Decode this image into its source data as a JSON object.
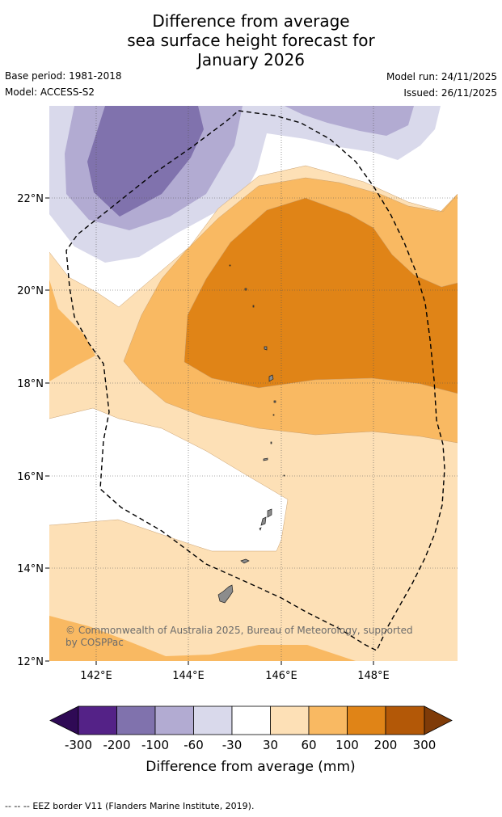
{
  "title": {
    "line1": "Difference from average",
    "line2": "sea surface height forecast for",
    "line3": "January 2026"
  },
  "meta": {
    "base_period": "Base period: 1981-2018",
    "model": "Model: ACCESS-S2",
    "model_run": "Model run: 24/11/2025",
    "issued": "Issued: 26/11/2025"
  },
  "map": {
    "lat_labels": [
      "22°N",
      "20°N",
      "18°N",
      "16°N",
      "14°N",
      "12°N"
    ],
    "lon_labels": [
      "142°E",
      "144°E",
      "146°E",
      "148°E"
    ],
    "copyright_line1": "© Commonwealth of Australia 2025, Bureau of Meteorology, supported",
    "copyright_line2": "by COSPPac",
    "colors": {
      "neg_lt300": "#2f0a55",
      "neg_300_200": "#542287",
      "neg_200_100": "#8072ad",
      "neg_100_60": "#b2abd2",
      "neg_60_30": "#d9d9eb",
      "neutral": "#ffffff",
      "pos_30_60": "#fde0b6",
      "pos_60_100": "#f9b962",
      "pos_100_200": "#e08417",
      "pos_200_300": "#b35807",
      "pos_gt300": "#7f3b08",
      "land": "#8c8c8c"
    }
  },
  "colorbar": {
    "tick_labels": [
      "-300",
      "-200",
      "-100",
      "-60",
      "-30",
      "30",
      "60",
      "100",
      "200",
      "300"
    ],
    "title": "Difference from average (mm)"
  },
  "footer": {
    "legend_symbol": "--  --  --",
    "text": "EEZ border V11 (Flanders Marine Institute, 2019)."
  }
}
